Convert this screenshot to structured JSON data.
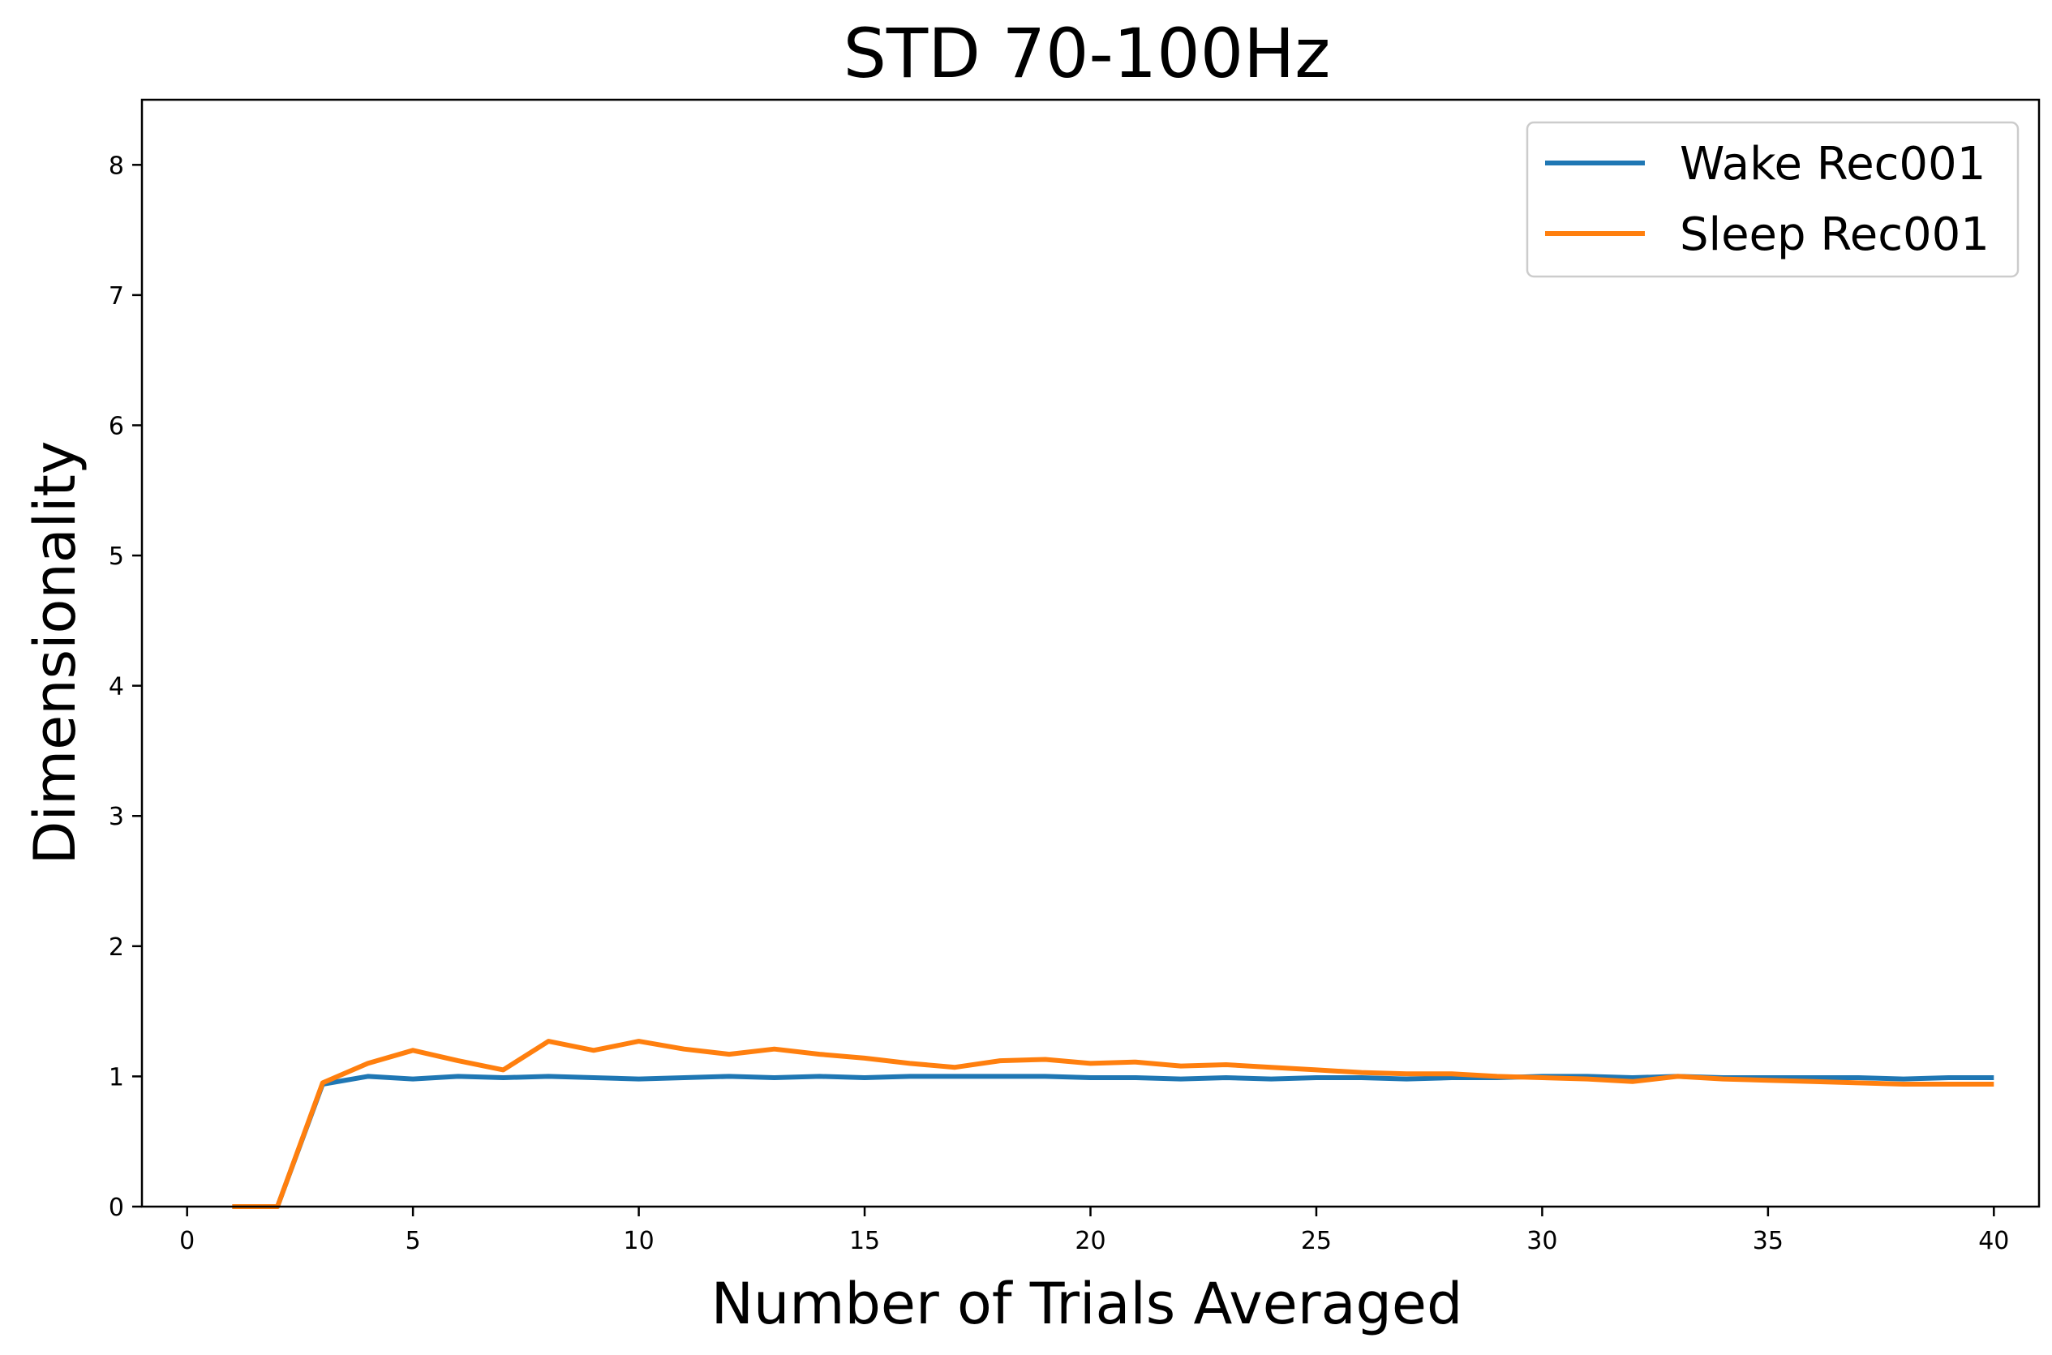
{
  "chart_data": {
    "type": "line",
    "title": "STD 70-100Hz",
    "xlabel": "Number of Trials Averaged",
    "ylabel": "Dimensionality",
    "xlim": [
      -1,
      41
    ],
    "ylim": [
      0,
      8.5
    ],
    "x_ticks": [
      0,
      5,
      10,
      15,
      20,
      25,
      30,
      35,
      40
    ],
    "y_ticks": [
      0,
      1,
      2,
      3,
      4,
      5,
      6,
      7,
      8
    ],
    "grid": false,
    "legend_position": "top-right",
    "x": [
      1,
      2,
      3,
      4,
      5,
      6,
      7,
      8,
      9,
      10,
      11,
      12,
      13,
      14,
      15,
      16,
      17,
      18,
      19,
      20,
      21,
      22,
      23,
      24,
      25,
      26,
      27,
      28,
      29,
      30,
      31,
      32,
      33,
      34,
      35,
      36,
      37,
      38,
      39,
      40
    ],
    "series": [
      {
        "name": "Wake Rec001",
        "color": "#1f77b4",
        "values": [
          0,
          0,
          0.94,
          1.0,
          0.98,
          1.0,
          0.99,
          1.0,
          0.99,
          0.98,
          0.99,
          1.0,
          0.99,
          1.0,
          0.99,
          1.0,
          1.0,
          1.0,
          1.0,
          0.99,
          0.99,
          0.98,
          0.99,
          0.98,
          0.99,
          0.99,
          0.98,
          0.99,
          0.99,
          1.0,
          1.0,
          0.99,
          1.0,
          0.99,
          0.99,
          0.99,
          0.99,
          0.98,
          0.99,
          0.99
        ]
      },
      {
        "name": "Sleep Rec001",
        "color": "#ff7f0e",
        "values": [
          0,
          0,
          0.95,
          1.1,
          1.2,
          1.12,
          1.05,
          1.27,
          1.2,
          1.27,
          1.21,
          1.17,
          1.21,
          1.17,
          1.14,
          1.1,
          1.07,
          1.12,
          1.13,
          1.1,
          1.11,
          1.08,
          1.09,
          1.07,
          1.05,
          1.03,
          1.02,
          1.02,
          1.0,
          0.99,
          0.98,
          0.96,
          1.0,
          0.98,
          0.97,
          0.96,
          0.95,
          0.94,
          0.94,
          0.94
        ]
      }
    ]
  }
}
